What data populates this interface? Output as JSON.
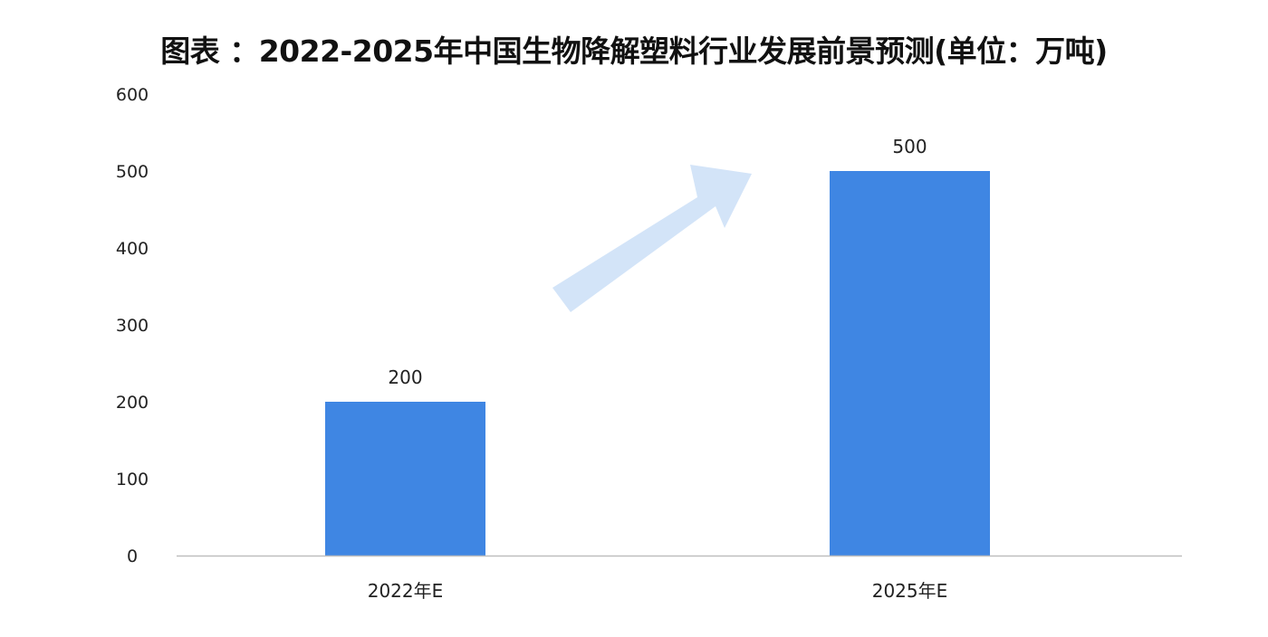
{
  "chart_data": {
    "type": "bar",
    "title": "图表 ：2022-2025年中国生物降解塑料行业发展前景预测(单位：万吨)",
    "categories": [
      "2022年E",
      "2025年E"
    ],
    "values": [
      200,
      500
    ],
    "data_labels": [
      "200",
      "500"
    ],
    "xlabel": "",
    "ylabel": "",
    "ylim": [
      0,
      600
    ],
    "yticks": [
      0,
      100,
      200,
      300,
      400,
      500,
      600
    ],
    "grid": false,
    "legend": "none",
    "colors": {
      "bar": "#3f86e3",
      "arrow": "#d3e4f8",
      "axis": "#bfbfbf"
    }
  }
}
